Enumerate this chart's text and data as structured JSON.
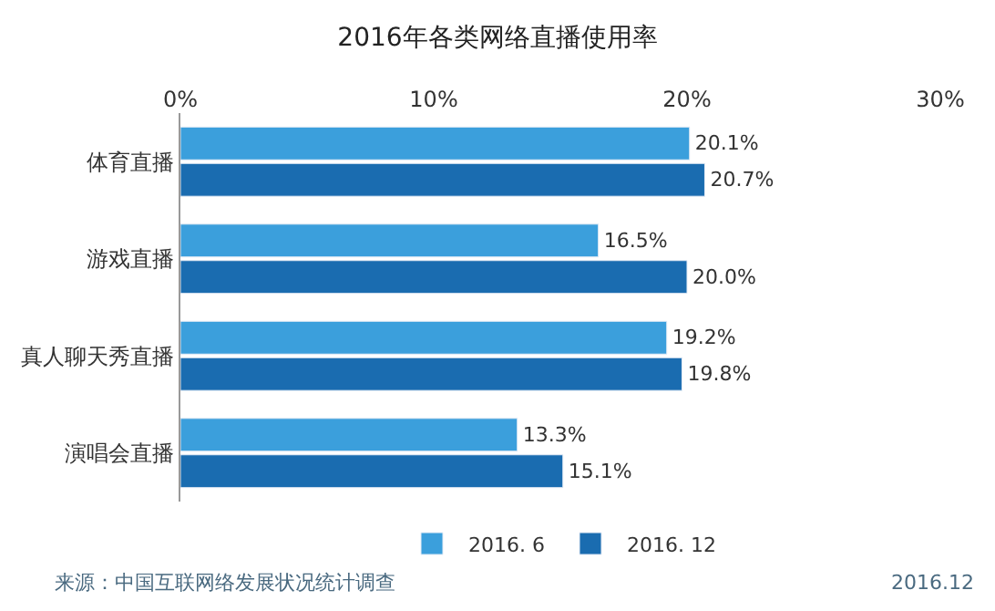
{
  "chart_data": {
    "type": "bar",
    "orientation": "horizontal",
    "title": "2016年各类网络直播使用率",
    "categories": [
      "体育直播",
      "游戏直播",
      "真人聊天秀直播",
      "演唱会直播"
    ],
    "series": [
      {
        "name": "2016. 6",
        "color": "#3b9fdc",
        "values": [
          20.1,
          16.5,
          19.2,
          13.3
        ],
        "value_labels": [
          "20.1%",
          "16.5%",
          "19.2%",
          "13.3%"
        ]
      },
      {
        "name": "2016. 12",
        "color": "#1a6cb0",
        "values": [
          20.7,
          20.0,
          19.8,
          15.1
        ],
        "value_labels": [
          "20.7%",
          "20.0%",
          "19.8%",
          "15.1%"
        ]
      }
    ],
    "xlim": [
      0,
      30
    ],
    "xticks": [
      {
        "value": 0,
        "label": "0%"
      },
      {
        "value": 10,
        "label": "10%"
      },
      {
        "value": 20,
        "label": "20%"
      },
      {
        "value": 30,
        "label": "30%"
      }
    ],
    "legend": "bottom",
    "annotations": [
      "来源：中国互联网络发展状况统计调查",
      "2016.12"
    ]
  }
}
